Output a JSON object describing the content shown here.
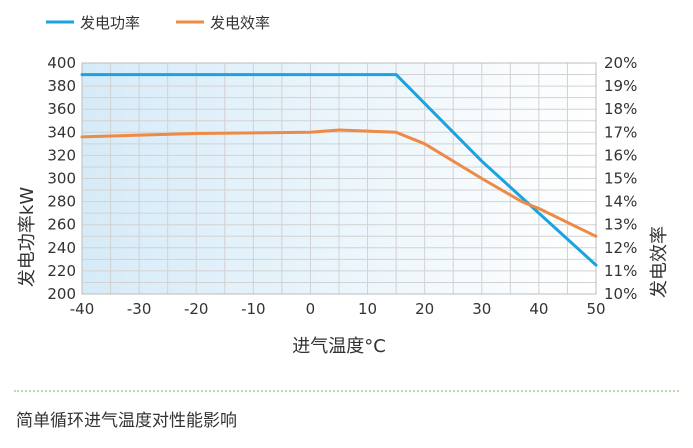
{
  "chart_data": {
    "type": "line",
    "xlabel": "进气温度°C",
    "ylabel_left": "发电功率kW",
    "ylabel_right": "发电效率",
    "xlim": [
      -40,
      50
    ],
    "xticks": [
      -40,
      -30,
      -20,
      -10,
      0,
      10,
      20,
      30,
      40,
      50
    ],
    "ylim_left": [
      200,
      400
    ],
    "yticks_left": [
      200,
      220,
      240,
      260,
      280,
      300,
      320,
      340,
      360,
      380,
      400
    ],
    "ylim_right": [
      10,
      20
    ],
    "yticks_right": [
      "10%",
      "11%",
      "12%",
      "13%",
      "14%",
      "15%",
      "16%",
      "17%",
      "18%",
      "19%",
      "20%"
    ],
    "grid": true,
    "legend_position": "top-left",
    "series": [
      {
        "name": "发电功率",
        "axis": "left",
        "color": "#1aa3e0",
        "x": [
          -40,
          15,
          30,
          50
        ],
        "y": [
          390,
          390,
          315,
          225
        ]
      },
      {
        "name": "发电效率",
        "axis": "right",
        "color": "#ee8a45",
        "x": [
          -40,
          -20,
          0,
          5,
          10,
          15,
          20,
          30,
          37,
          40,
          50
        ],
        "y": [
          16.8,
          16.95,
          17.0,
          17.1,
          17.05,
          17.0,
          16.5,
          15.0,
          14.0,
          13.7,
          12.5
        ]
      }
    ]
  },
  "caption": "简单循环进气温度对性能影响"
}
